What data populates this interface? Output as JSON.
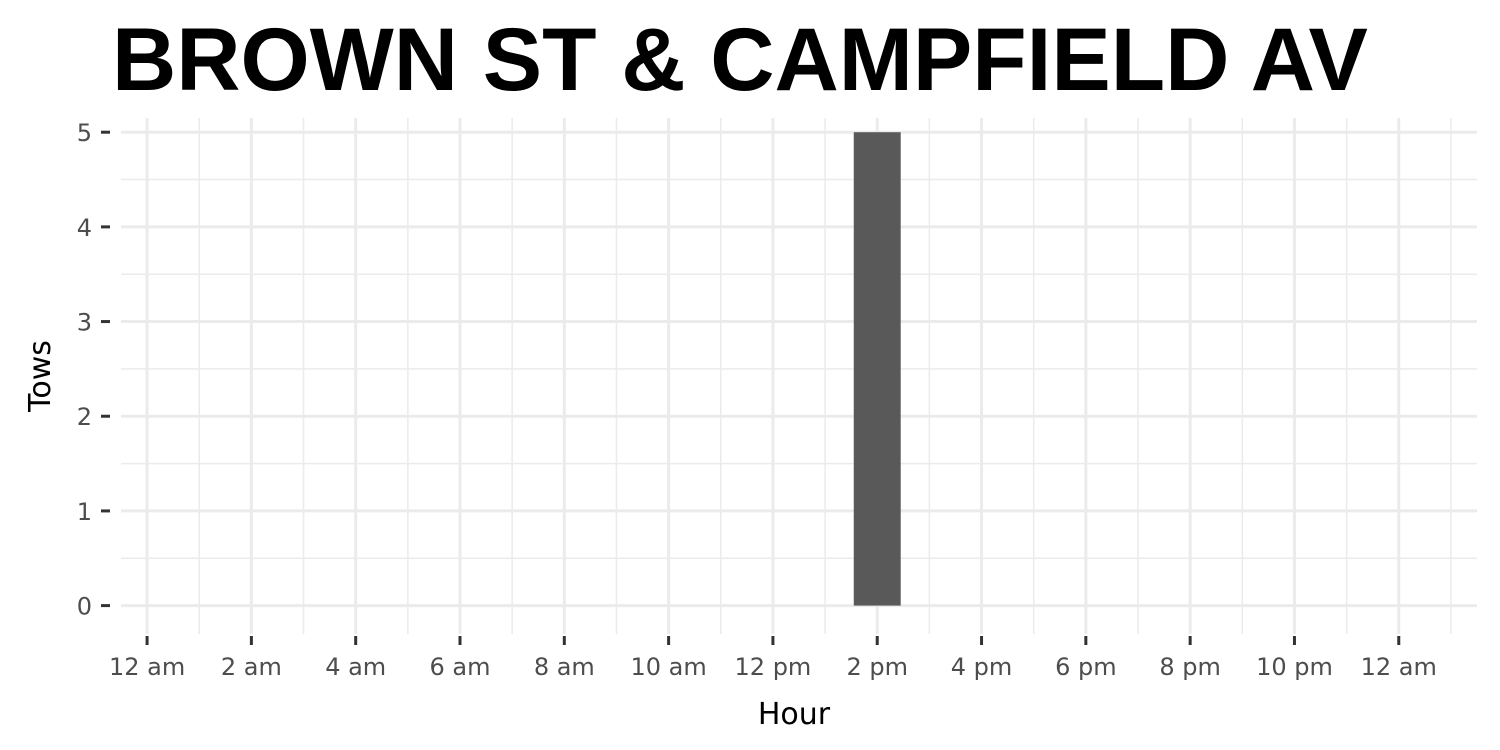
{
  "chart_data": {
    "type": "bar",
    "title": "BROWN ST & CAMPFIELD AV",
    "xlabel": "Hour",
    "ylabel": "Tows",
    "x_range_hours": [
      -0.5,
      25.5
    ],
    "ylim": [
      -0.3,
      5.15
    ],
    "y_ticks": [
      0,
      1,
      2,
      3,
      4,
      5
    ],
    "x_ticks": [
      {
        "hour": 0,
        "label": "12 am"
      },
      {
        "hour": 2,
        "label": "2 am"
      },
      {
        "hour": 4,
        "label": "4 am"
      },
      {
        "hour": 6,
        "label": "6 am"
      },
      {
        "hour": 8,
        "label": "8 am"
      },
      {
        "hour": 10,
        "label": "10 am"
      },
      {
        "hour": 12,
        "label": "12 pm"
      },
      {
        "hour": 14,
        "label": "2 pm"
      },
      {
        "hour": 16,
        "label": "4 pm"
      },
      {
        "hour": 18,
        "label": "6 pm"
      },
      {
        "hour": 20,
        "label": "8 pm"
      },
      {
        "hour": 22,
        "label": "10 pm"
      },
      {
        "hour": 24,
        "label": "12 am"
      }
    ],
    "series": [
      {
        "values": [
          {
            "hour": 14,
            "value": 5
          }
        ]
      }
    ],
    "bar_color": "#595959",
    "grid": true,
    "grid_color": "#ebebeb",
    "background": "#ffffff"
  }
}
